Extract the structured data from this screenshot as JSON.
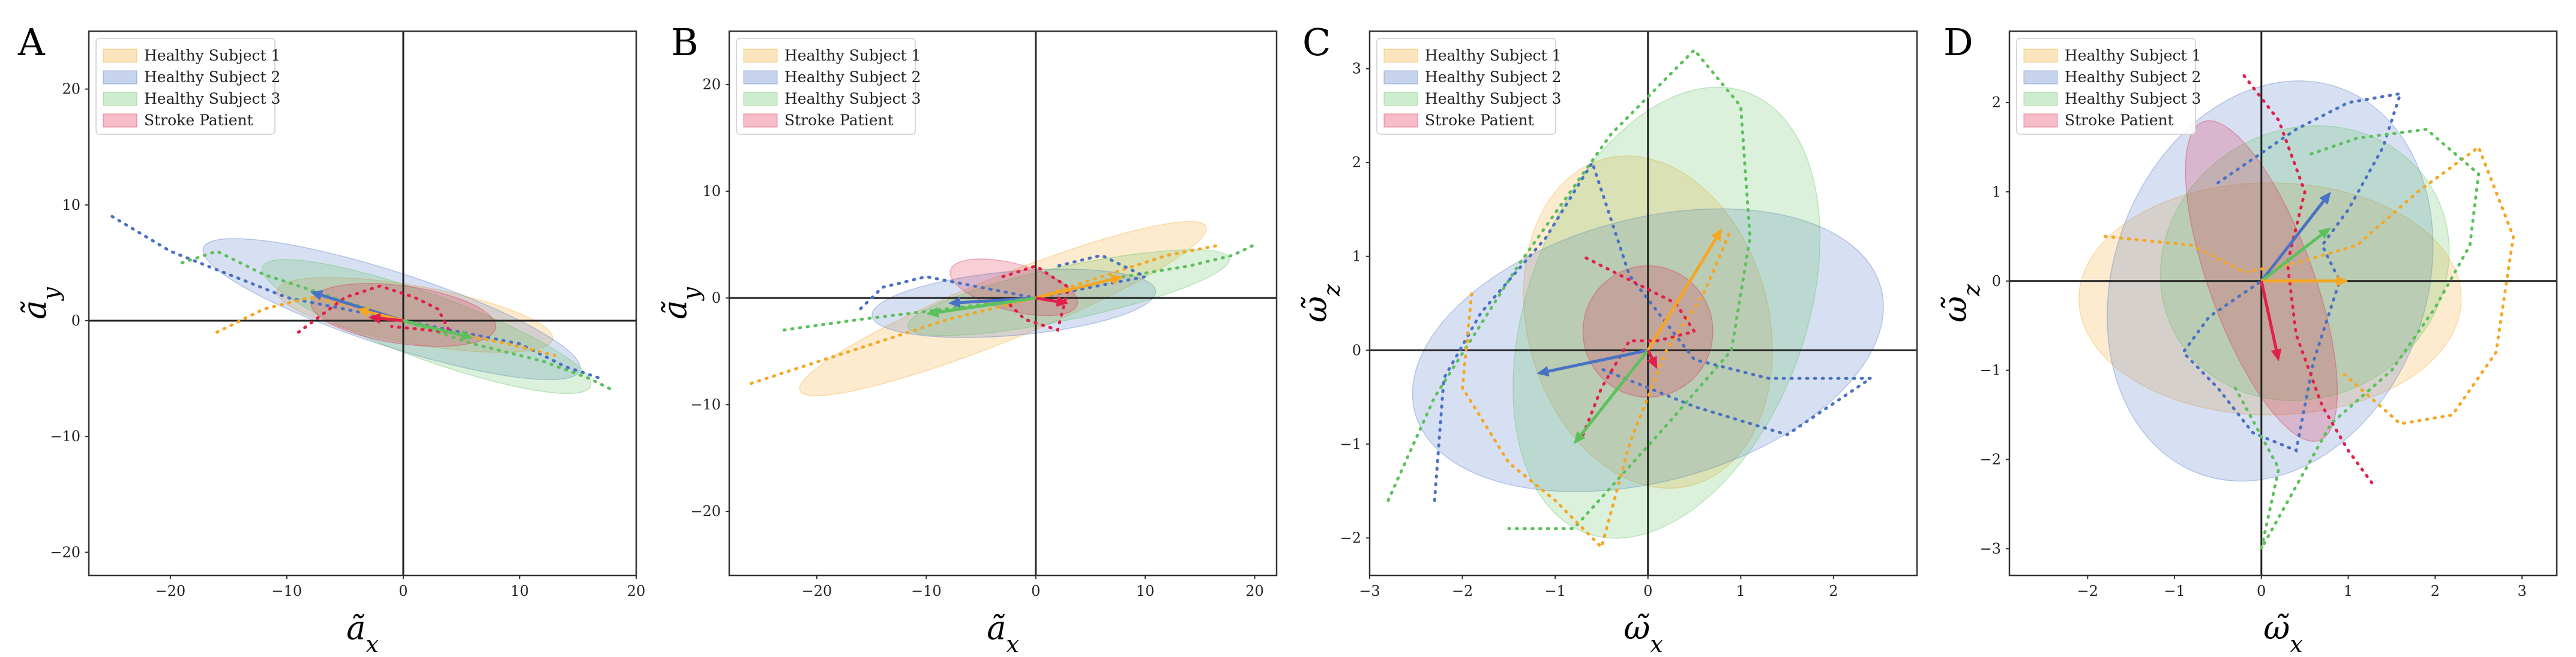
{
  "colors": {
    "healthy1": "#f5a623",
    "healthy2": "#4a72c4",
    "healthy3": "#5cc15c",
    "stroke": "#e0204a",
    "axis": "#222222",
    "frame": "#333333"
  },
  "legend": [
    {
      "label": "Healthy Subject 1",
      "color": "#f5a623"
    },
    {
      "label": "Healthy Subject 2",
      "color": "#4a72c4"
    },
    {
      "label": "Healthy Subject 3",
      "color": "#5cc15c"
    },
    {
      "label": "Stroke Patient",
      "color": "#e0204a"
    }
  ],
  "chart_data": [
    {
      "panel": "A",
      "type": "scatter",
      "xlabel": "ã_x",
      "ylabel": "ã_y",
      "xlim": [
        -27,
        20
      ],
      "ylim": [
        -22,
        25
      ],
      "xticks": [
        -20,
        -10,
        0,
        10,
        20
      ],
      "yticks": [
        -20,
        -10,
        0,
        10,
        20
      ],
      "ellipses": [
        {
          "series": "Healthy Subject 1",
          "cx": 1,
          "cy": 0.5,
          "rx": 12,
          "ry": 2.5,
          "angle": -10,
          "color": "#f5a623"
        },
        {
          "series": "Healthy Subject 2",
          "cx": -1,
          "cy": 1,
          "rx": 17,
          "ry": 3.2,
          "angle": -18,
          "color": "#4a72c4"
        },
        {
          "series": "Healthy Subject 3",
          "cx": 2,
          "cy": -0.5,
          "rx": 15,
          "ry": 2.8,
          "angle": -20,
          "color": "#5cc15c"
        },
        {
          "series": "Stroke Patient",
          "cx": 0,
          "cy": 0.5,
          "rx": 8,
          "ry": 2.5,
          "angle": -8,
          "color": "#e0204a"
        }
      ],
      "trajectories": [
        {
          "series": "Healthy Subject 2",
          "color": "#4a72c4",
          "points": [
            [
              -25,
              9
            ],
            [
              -20,
              6
            ],
            [
              -15,
              4
            ],
            [
              -10,
              2
            ],
            [
              -5,
              1
            ],
            [
              0,
              0
            ],
            [
              5,
              -1
            ],
            [
              10,
              -2
            ],
            [
              14,
              -4
            ],
            [
              17,
              -5
            ]
          ]
        },
        {
          "series": "Healthy Subject 3",
          "color": "#5cc15c",
          "points": [
            [
              -19,
              5
            ],
            [
              -16,
              6
            ],
            [
              -12,
              4
            ],
            [
              -6,
              2
            ],
            [
              0,
              0
            ],
            [
              6,
              -2
            ],
            [
              12,
              -3.5
            ],
            [
              16,
              -5
            ],
            [
              18,
              -6
            ]
          ]
        },
        {
          "series": "Healthy Subject 1",
          "color": "#f5a623",
          "points": [
            [
              -16,
              -1
            ],
            [
              -12,
              1
            ],
            [
              -8,
              2
            ],
            [
              -3,
              1
            ],
            [
              0,
              0
            ],
            [
              4,
              -1
            ],
            [
              9,
              -2
            ],
            [
              13,
              -3
            ]
          ]
        },
        {
          "series": "Stroke Patient",
          "color": "#e0204a",
          "points": [
            [
              -9,
              -1
            ],
            [
              -5,
              2
            ],
            [
              -2,
              3
            ],
            [
              1,
              2
            ],
            [
              3,
              1
            ],
            [
              4,
              -1
            ],
            [
              -1,
              -0.5
            ]
          ]
        }
      ],
      "arrows": [
        {
          "series": "Healthy Subject 2",
          "color": "#4a72c4",
          "dx": -8,
          "dy": 2.5
        },
        {
          "series": "Healthy Subject 3",
          "color": "#5cc15c",
          "dx": 6,
          "dy": -1.5
        },
        {
          "series": "Healthy Subject 1",
          "color": "#f5a623",
          "dx": -4,
          "dy": 1
        },
        {
          "series": "Stroke Patient",
          "color": "#e0204a",
          "dx": -3,
          "dy": 0.3
        }
      ]
    },
    {
      "panel": "B",
      "type": "scatter",
      "xlabel": "ã_x",
      "ylabel": "ã_y",
      "xlim": [
        -28,
        22
      ],
      "ylim": [
        -26,
        25
      ],
      "xticks": [
        -20,
        -10,
        0,
        10,
        20
      ],
      "yticks": [
        -20,
        -10,
        0,
        10,
        20
      ],
      "ellipses": [
        {
          "series": "Healthy Subject 1",
          "cx": -3,
          "cy": -1,
          "rx": 20,
          "ry": 3,
          "angle": 22,
          "color": "#f5a623"
        },
        {
          "series": "Healthy Subject 2",
          "cx": -2,
          "cy": -0.5,
          "rx": 13,
          "ry": 3,
          "angle": 5,
          "color": "#4a72c4"
        },
        {
          "series": "Healthy Subject 3",
          "cx": 3,
          "cy": 0.5,
          "rx": 15,
          "ry": 2.5,
          "angle": 12,
          "color": "#5cc15c"
        },
        {
          "series": "Stroke Patient",
          "cx": -2,
          "cy": 1,
          "rx": 6,
          "ry": 2.2,
          "angle": -15,
          "color": "#e0204a"
        }
      ],
      "trajectories": [
        {
          "series": "Healthy Subject 1",
          "color": "#f5a623",
          "points": [
            [
              -26,
              -8
            ],
            [
              -20,
              -6
            ],
            [
              -14,
              -4
            ],
            [
              -8,
              -2
            ],
            [
              0,
              0
            ],
            [
              6,
              2
            ],
            [
              12,
              4
            ],
            [
              17,
              5
            ]
          ]
        },
        {
          "series": "Healthy Subject 3",
          "color": "#5cc15c",
          "points": [
            [
              -23,
              -3
            ],
            [
              -16,
              -2
            ],
            [
              -8,
              -1
            ],
            [
              0,
              0
            ],
            [
              8,
              2
            ],
            [
              14,
              3
            ],
            [
              18,
              4
            ],
            [
              20,
              5
            ]
          ]
        },
        {
          "series": "Healthy Subject 2",
          "color": "#4a72c4",
          "points": [
            [
              -16,
              -1
            ],
            [
              -14,
              1
            ],
            [
              -10,
              2
            ],
            [
              -5,
              1
            ],
            [
              0,
              0
            ],
            [
              5,
              1
            ],
            [
              10,
              2
            ],
            [
              6,
              4
            ],
            [
              2,
              3
            ]
          ]
        },
        {
          "series": "Stroke Patient",
          "color": "#e0204a",
          "points": [
            [
              -3,
              2
            ],
            [
              0,
              3
            ],
            [
              3,
              1
            ],
            [
              2,
              -3
            ],
            [
              -1,
              -2
            ],
            [
              -3,
              0
            ]
          ]
        }
      ],
      "arrows": [
        {
          "series": "Healthy Subject 2",
          "color": "#4a72c4",
          "dx": -8,
          "dy": -0.5
        },
        {
          "series": "Healthy Subject 3",
          "color": "#5cc15c",
          "dx": -10,
          "dy": -1.5
        },
        {
          "series": "Healthy Subject 1",
          "color": "#f5a623",
          "dx": 8,
          "dy": 2
        },
        {
          "series": "Stroke Patient",
          "color": "#e0204a",
          "dx": 3,
          "dy": -0.5
        }
      ]
    },
    {
      "panel": "C",
      "type": "scatter",
      "xlabel": "ω̃_x",
      "ylabel": "ω̃_z",
      "xlim": [
        -3,
        2.9
      ],
      "ylim": [
        -2.4,
        3.4
      ],
      "xticks": [
        -3,
        -2,
        -1,
        0,
        1,
        2
      ],
      "yticks": [
        -2,
        -1,
        0,
        1,
        2,
        3
      ],
      "ellipses": [
        {
          "series": "Healthy Subject 1",
          "cx": 0,
          "cy": 0.3,
          "rx": 1.3,
          "ry": 1.8,
          "angle": 15,
          "color": "#f5a623"
        },
        {
          "series": "Healthy Subject 2",
          "cx": 0,
          "cy": 0,
          "rx": 2.6,
          "ry": 1.4,
          "angle": 15,
          "color": "#4a72c4"
        },
        {
          "series": "Healthy Subject 3",
          "cx": 0.2,
          "cy": 0.4,
          "rx": 1.5,
          "ry": 2.5,
          "angle": -20,
          "color": "#5cc15c"
        },
        {
          "series": "Stroke Patient",
          "cx": 0,
          "cy": 0.2,
          "rx": 0.7,
          "ry": 0.7,
          "angle": 0,
          "color": "#e0204a"
        }
      ],
      "trajectories": [
        {
          "series": "Healthy Subject 3",
          "color": "#5cc15c",
          "points": [
            [
              -2.8,
              -1.6
            ],
            [
              -2.3,
              -0.5
            ],
            [
              -1.4,
              0.9
            ],
            [
              -0.4,
              2.3
            ],
            [
              0.5,
              3.2
            ],
            [
              1.0,
              2.6
            ],
            [
              1.1,
              1.2
            ],
            [
              0.9,
              0
            ],
            [
              0.2,
              -0.8
            ],
            [
              -0.8,
              -1.9
            ],
            [
              -1.5,
              -1.9
            ]
          ]
        },
        {
          "series": "Healthy Subject 2",
          "color": "#4a72c4",
          "points": [
            [
              -2.3,
              -1.6
            ],
            [
              -2.2,
              -0.3
            ],
            [
              -1.8,
              0.4
            ],
            [
              -1.1,
              1.2
            ],
            [
              -0.6,
              2.0
            ],
            [
              -0.2,
              0.8
            ],
            [
              0.5,
              -0.1
            ],
            [
              1.3,
              -0.3
            ],
            [
              2.4,
              -0.3
            ],
            [
              1.5,
              -0.9
            ],
            [
              0.5,
              -0.6
            ],
            [
              -0.5,
              -0.2
            ]
          ]
        },
        {
          "series": "Healthy Subject 1",
          "color": "#f5a623",
          "points": [
            [
              -1.9,
              0.6
            ],
            [
              -2.0,
              -0.4
            ],
            [
              -1.5,
              -1.2
            ],
            [
              -1.0,
              -1.6
            ],
            [
              -0.5,
              -2.1
            ],
            [
              -0.2,
              -1.0
            ],
            [
              0.2,
              0.0
            ],
            [
              0.6,
              0.6
            ],
            [
              0.9,
              1.3
            ]
          ]
        },
        {
          "series": "Stroke Patient",
          "color": "#e0204a",
          "points": [
            [
              -0.7,
              -0.9
            ],
            [
              -0.5,
              -0.4
            ],
            [
              -0.2,
              0.1
            ],
            [
              0.1,
              0.1
            ],
            [
              0.5,
              0.2
            ],
            [
              0.3,
              0.5
            ],
            [
              -0.7,
              1.0
            ]
          ]
        }
      ],
      "arrows": [
        {
          "series": "Healthy Subject 2",
          "color": "#4a72c4",
          "dx": -1.2,
          "dy": -0.25
        },
        {
          "series": "Healthy Subject 3",
          "color": "#5cc15c",
          "dx": -0.8,
          "dy": -1.0
        },
        {
          "series": "Healthy Subject 1",
          "color": "#f5a623",
          "dx": 0.8,
          "dy": 1.3
        },
        {
          "series": "Stroke Patient",
          "color": "#e0204a",
          "dx": 0.1,
          "dy": -0.2
        }
      ]
    },
    {
      "panel": "D",
      "type": "scatter",
      "xlabel": "ω̃_x",
      "ylabel": "ω̃_z",
      "xlim": [
        -2.9,
        3.4
      ],
      "ylim": [
        -3.3,
        2.8
      ],
      "xticks": [
        -2,
        -1,
        0,
        1,
        2,
        3
      ],
      "yticks": [
        -3,
        -2,
        -1,
        0,
        1,
        2
      ],
      "ellipses": [
        {
          "series": "Healthy Subject 1",
          "cx": 0.1,
          "cy": -0.2,
          "rx": 2.2,
          "ry": 1.3,
          "angle": 0,
          "color": "#f5a623"
        },
        {
          "series": "Healthy Subject 2",
          "cx": 0.1,
          "cy": 0.0,
          "rx": 1.8,
          "ry": 2.3,
          "angle": -20,
          "color": "#4a72c4"
        },
        {
          "series": "Healthy Subject 3",
          "cx": 0.5,
          "cy": 0.2,
          "rx": 1.7,
          "ry": 1.5,
          "angle": 30,
          "color": "#5cc15c"
        },
        {
          "series": "Stroke Patient",
          "cx": 0,
          "cy": 0,
          "rx": 0.6,
          "ry": 1.9,
          "angle": 20,
          "color": "#e0204a"
        }
      ],
      "trajectories": [
        {
          "series": "Healthy Subject 2",
          "color": "#4a72c4",
          "points": [
            [
              -0.5,
              1.1
            ],
            [
              0.4,
              1.7
            ],
            [
              1.0,
              2.0
            ],
            [
              1.6,
              2.1
            ],
            [
              1.4,
              1.5
            ],
            [
              1.0,
              0.8
            ],
            [
              0.7,
              0.4
            ],
            [
              0.9,
              0.0
            ],
            [
              0.6,
              -0.9
            ],
            [
              0.4,
              -1.9
            ],
            [
              -0.1,
              -1.7
            ],
            [
              -0.5,
              -1.2
            ],
            [
              -0.9,
              -0.8
            ],
            [
              -0.6,
              -0.4
            ],
            [
              0.0,
              0.0
            ]
          ]
        },
        {
          "series": "Healthy Subject 1",
          "color": "#f5a623",
          "points": [
            [
              -1.8,
              0.5
            ],
            [
              -0.8,
              0.4
            ],
            [
              -0.2,
              0.1
            ],
            [
              0.4,
              0.2
            ],
            [
              1.1,
              0.4
            ],
            [
              1.8,
              1.0
            ],
            [
              2.5,
              1.5
            ],
            [
              2.9,
              0.5
            ],
            [
              2.7,
              -0.8
            ],
            [
              2.2,
              -1.5
            ],
            [
              1.6,
              -1.6
            ],
            [
              0.9,
              -1.0
            ]
          ]
        },
        {
          "series": "Healthy Subject 3",
          "color": "#5cc15c",
          "points": [
            [
              -0.3,
              -1.2
            ],
            [
              0.2,
              -2.1
            ],
            [
              0.0,
              -3.0
            ],
            [
              0.4,
              -2.3
            ],
            [
              0.8,
              -1.6
            ],
            [
              1.5,
              -1.0
            ],
            [
              2.0,
              -0.3
            ],
            [
              2.4,
              0.4
            ],
            [
              2.5,
              1.2
            ],
            [
              1.9,
              1.7
            ],
            [
              1.1,
              1.6
            ],
            [
              0.5,
              1.4
            ]
          ]
        },
        {
          "series": "Stroke Patient",
          "color": "#e0204a",
          "points": [
            [
              -0.2,
              2.3
            ],
            [
              0.2,
              1.8
            ],
            [
              0.5,
              1.0
            ],
            [
              0.3,
              0.2
            ],
            [
              0.4,
              -0.6
            ],
            [
              0.7,
              -1.4
            ],
            [
              1.0,
              -1.9
            ],
            [
              1.3,
              -2.3
            ]
          ]
        }
      ],
      "arrows": [
        {
          "series": "Healthy Subject 2",
          "color": "#4a72c4",
          "dx": 0.8,
          "dy": 1.0
        },
        {
          "series": "Healthy Subject 3",
          "color": "#5cc15c",
          "dx": 0.8,
          "dy": 0.6
        },
        {
          "series": "Healthy Subject 1",
          "color": "#f5a623",
          "dx": 1.0,
          "dy": 0.0
        },
        {
          "series": "Stroke Patient",
          "color": "#e0204a",
          "dx": 0.2,
          "dy": -0.9
        }
      ]
    }
  ]
}
